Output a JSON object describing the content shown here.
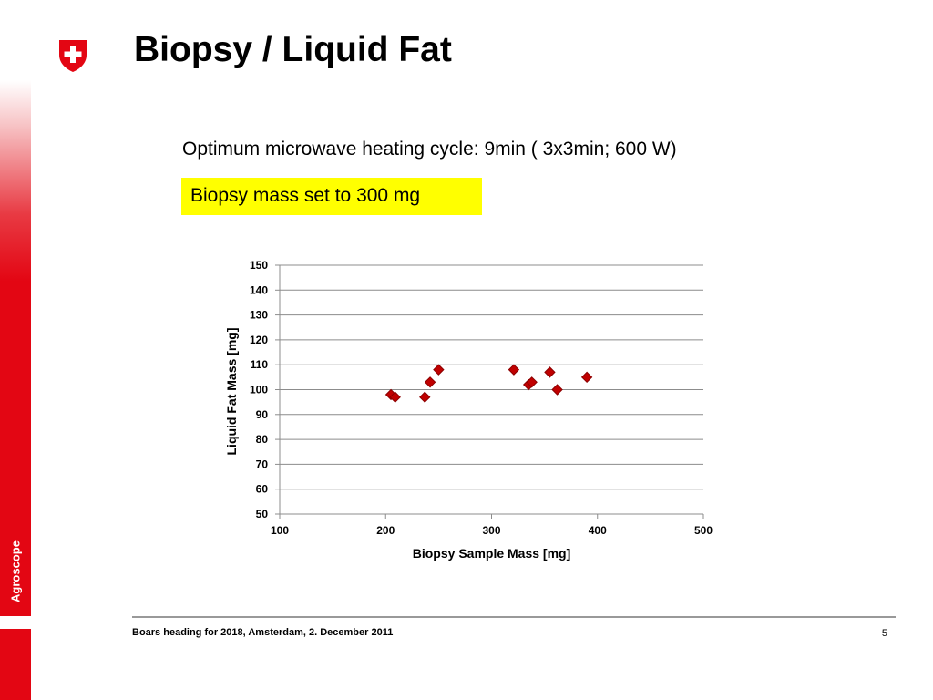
{
  "slide": {
    "title": "Biopsy / Liquid Fat",
    "subtitle": "Optimum microwave heating cycle: 9min ( 3x3min; 600 W)",
    "highlight": "Biopsy mass set to 300 mg",
    "footer": "Boars heading for 2018, Amsterdam, 2. December 2011",
    "page_number": "5",
    "logo_text": "Agroscope"
  },
  "colors": {
    "brand_red": "#e30613",
    "highlight_yellow": "#ffff00",
    "marker_fill": "#c00000",
    "marker_stroke": "#8b0000"
  },
  "icons": {
    "logo": "swiss-cross-shield-icon"
  },
  "chart_data": {
    "type": "scatter",
    "xlabel": "Biopsy Sample Mass [mg]",
    "ylabel": "Liquid Fat Mass [mg]",
    "xlim": [
      100,
      500
    ],
    "ylim": [
      50,
      150
    ],
    "xticks": [
      100,
      200,
      300,
      400,
      500
    ],
    "yticks": [
      50,
      60,
      70,
      80,
      90,
      100,
      110,
      120,
      130,
      140,
      150
    ],
    "grid": "horizontal",
    "marker": "diamond",
    "series": [
      {
        "points": [
          [
            205,
            98
          ],
          [
            209,
            97
          ],
          [
            237,
            97
          ],
          [
            242,
            103
          ],
          [
            250,
            108
          ],
          [
            321,
            108
          ],
          [
            335,
            102
          ],
          [
            338,
            103
          ],
          [
            355,
            107
          ],
          [
            362,
            100
          ],
          [
            390,
            105
          ]
        ]
      }
    ]
  }
}
